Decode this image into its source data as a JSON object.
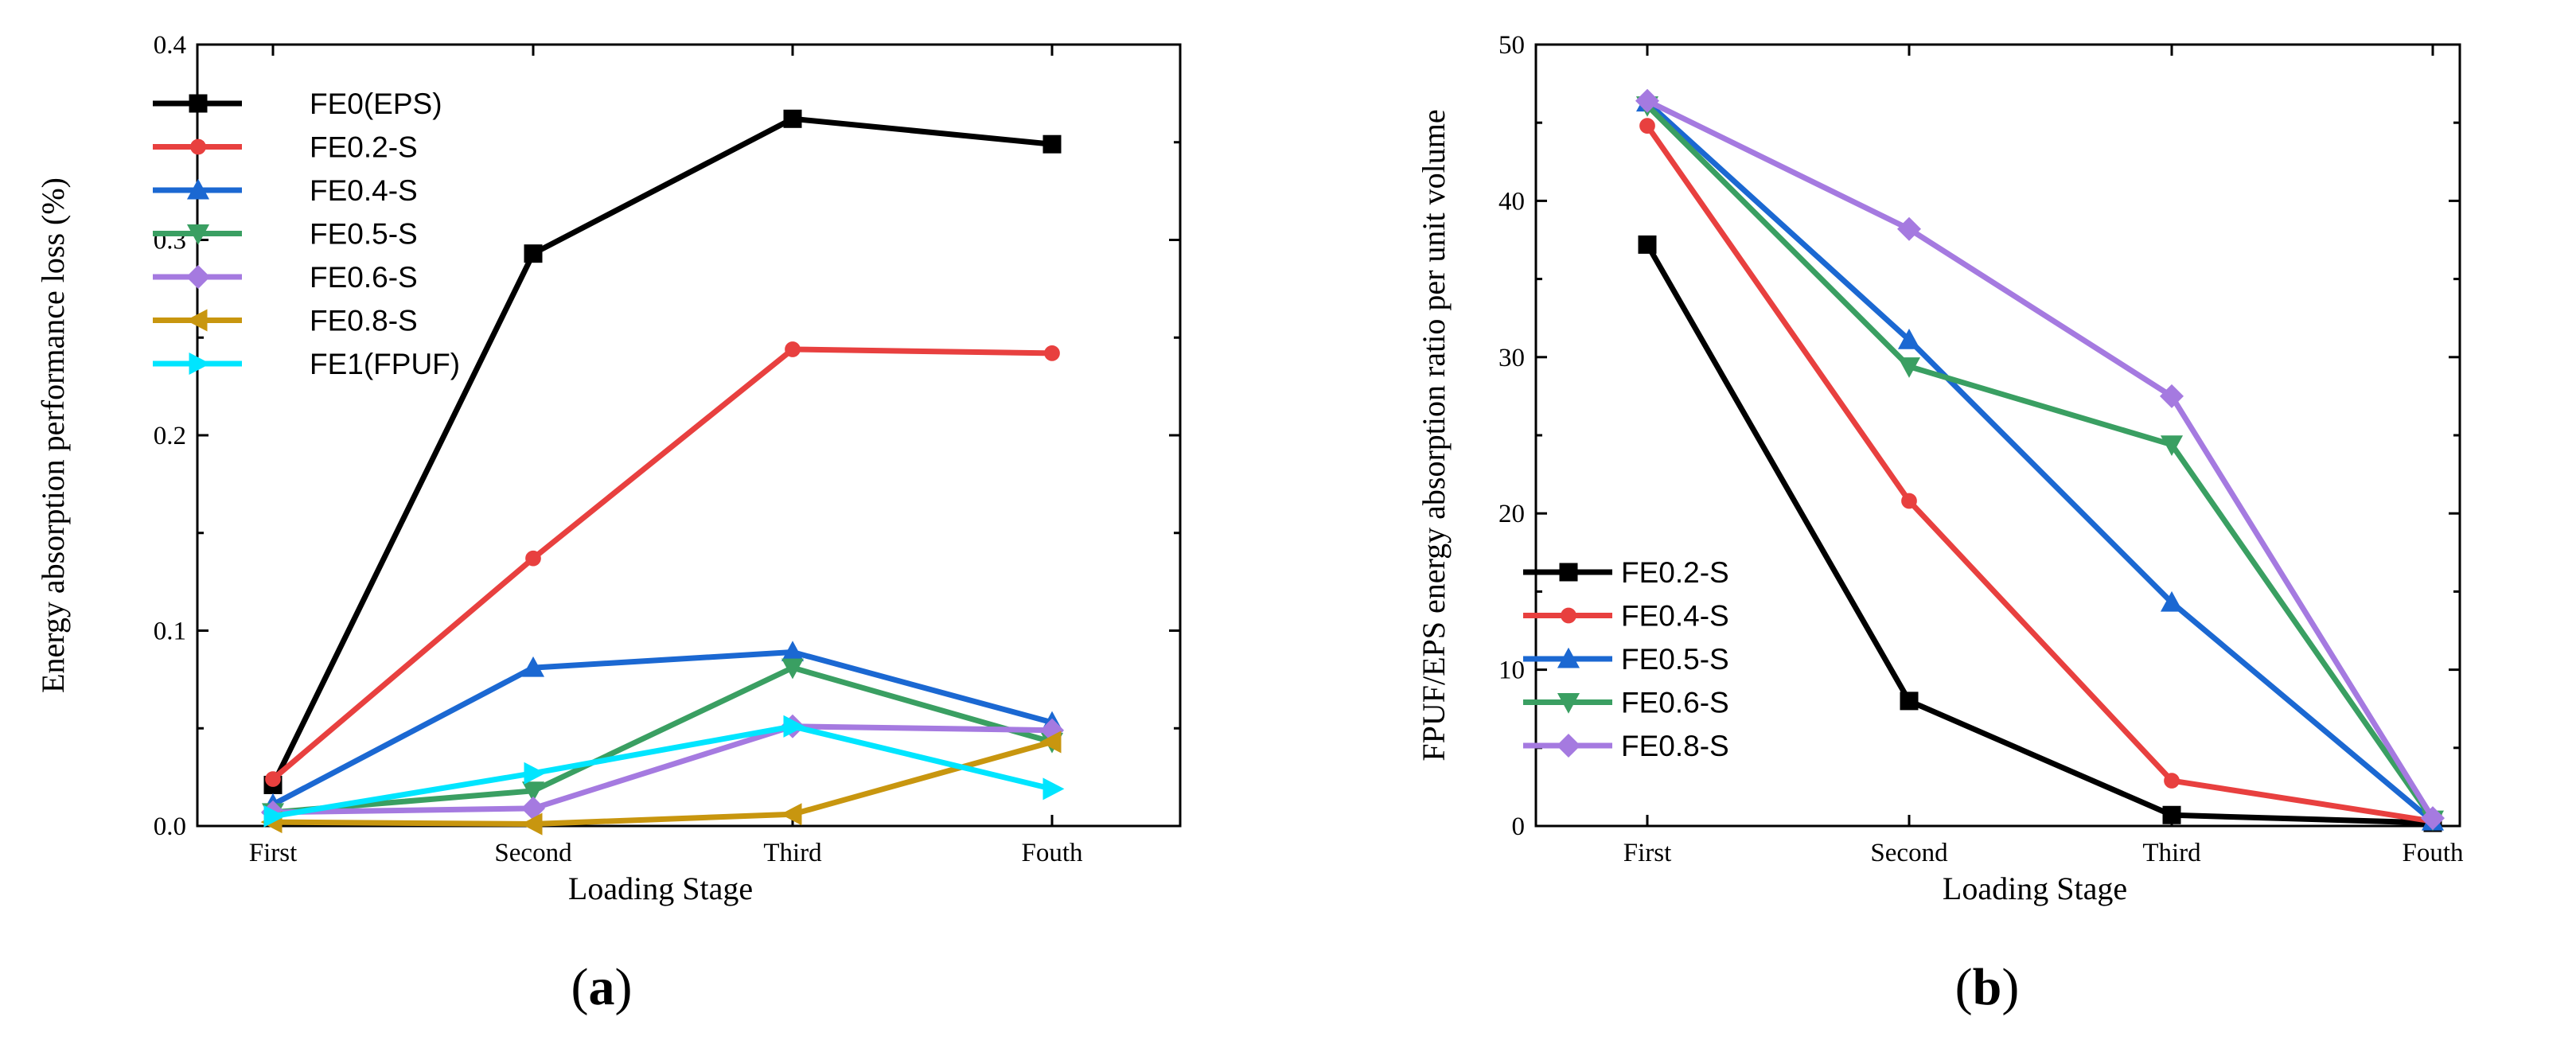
{
  "chart_data": [
    {
      "type": "line",
      "panel": "(a)",
      "panel_letter": "a",
      "categories": [
        "First",
        "Second",
        "Third",
        "Fouth"
      ],
      "xlabel": "Loading Stage",
      "ylabel": "Energy absorption performance loss (%)",
      "ylim": [
        0,
        0.4
      ],
      "yticks": [
        0.0,
        0.1,
        0.2,
        0.3,
        0.4
      ],
      "ytick_labels": [
        "0.0",
        "0.1",
        "0.2",
        "0.3",
        "0.4"
      ],
      "legend_position": "top-left",
      "series": [
        {
          "name": "FE0(EPS)",
          "color": "#000000",
          "marker": "square",
          "values": [
            0.021,
            0.293,
            0.362,
            0.349
          ]
        },
        {
          "name": "FE0.2-S",
          "color": "#e8403f",
          "marker": "circle",
          "values": [
            0.024,
            0.137,
            0.244,
            0.242
          ]
        },
        {
          "name": "FE0.4-S",
          "color": "#1b68d2",
          "marker": "triangle-up",
          "values": [
            0.011,
            0.081,
            0.089,
            0.053
          ]
        },
        {
          "name": "FE0.5-S",
          "color": "#3a9f62",
          "marker": "triangle-down",
          "values": [
            0.007,
            0.018,
            0.081,
            0.043
          ]
        },
        {
          "name": "FE0.6-S",
          "color": "#a57ae0",
          "marker": "diamond",
          "values": [
            0.007,
            0.009,
            0.051,
            0.049
          ]
        },
        {
          "name": "FE0.8-S",
          "color": "#c8960f",
          "marker": "triangle-left",
          "values": [
            0.002,
            0.001,
            0.006,
            0.043
          ]
        },
        {
          "name": "FE1(FPUF)",
          "color": "#00e5ff",
          "marker": "triangle-right",
          "values": [
            0.005,
            0.027,
            0.051,
            0.019
          ]
        }
      ]
    },
    {
      "type": "line",
      "panel": "(b)",
      "panel_letter": "b",
      "categories": [
        "First",
        "Second",
        "Third",
        "Fouth"
      ],
      "xlabel": "Loading Stage",
      "ylabel": "FPUF/EPS energy absorption ratio per unit volume",
      "ylim": [
        0,
        50
      ],
      "yticks": [
        0,
        10,
        20,
        30,
        40,
        50
      ],
      "ytick_labels": [
        "0",
        "10",
        "20",
        "30",
        "40",
        "50"
      ],
      "legend_position": "bottom-left",
      "series": [
        {
          "name": "FE0.2-S",
          "color": "#000000",
          "marker": "square",
          "values": [
            37.2,
            8.0,
            0.7,
            0.2
          ]
        },
        {
          "name": "FE0.4-S",
          "color": "#e8403f",
          "marker": "circle",
          "values": [
            44.8,
            20.8,
            2.9,
            0.3
          ]
        },
        {
          "name": "FE0.5-S",
          "color": "#1b68d2",
          "marker": "triangle-up",
          "values": [
            46.3,
            31.1,
            14.3,
            0.3
          ]
        },
        {
          "name": "FE0.6-S",
          "color": "#3a9f62",
          "marker": "triangle-down",
          "values": [
            46.1,
            29.4,
            24.4,
            0.4
          ]
        },
        {
          "name": "FE0.8-S",
          "color": "#a57ae0",
          "marker": "diamond",
          "values": [
            46.4,
            38.2,
            27.5,
            0.5
          ]
        }
      ]
    }
  ]
}
